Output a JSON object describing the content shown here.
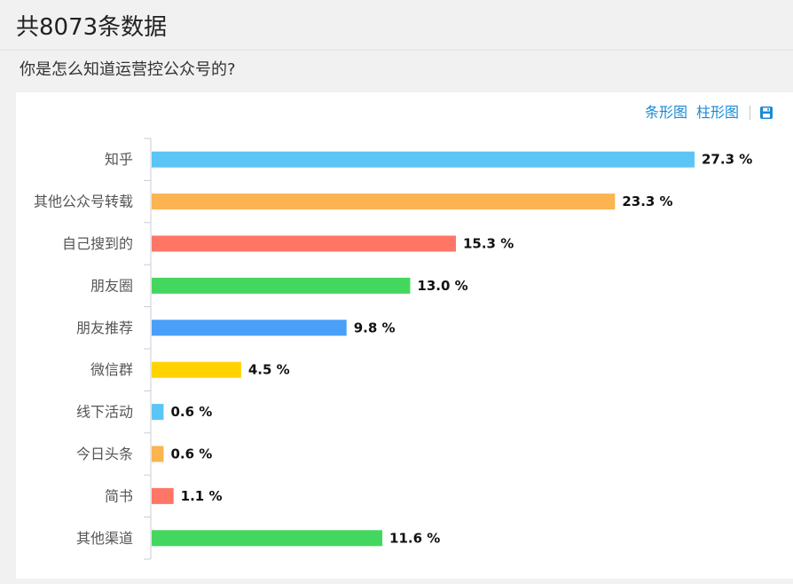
{
  "header": {
    "title": "共8073条数据"
  },
  "question": {
    "text": "你是怎么知道运营控公众号的?"
  },
  "toolbar": {
    "bar_label": "条形图",
    "column_label": "柱形图",
    "save_icon": "floppy-disk-icon"
  },
  "colors": {
    "link": "#1a8ad4",
    "series": [
      "#5bc5f5",
      "#fbb450",
      "#ff7666",
      "#44d760",
      "#4a9ff9",
      "#ffd200"
    ]
  },
  "chart_data": {
    "type": "bar",
    "orientation": "horizontal",
    "categories": [
      "知乎",
      "其他公众号转载",
      "自己搜到的",
      "朋友圈",
      "朋友推荐",
      "微信群",
      "线下活动",
      "今日头条",
      "简书",
      "其他渠道"
    ],
    "values": [
      27.3,
      23.3,
      15.3,
      13.0,
      9.8,
      4.5,
      0.6,
      0.6,
      1.1,
      11.6
    ],
    "value_labels": [
      "27.3 %",
      "23.3 %",
      "15.3 %",
      "13.0 %",
      "9.8 %",
      "4.5 %",
      "0.6 %",
      "0.6 %",
      "1.1 %",
      "11.6 %"
    ],
    "unit": "%",
    "xlim": [
      0,
      27.3
    ],
    "grid": false,
    "legend": "none"
  }
}
